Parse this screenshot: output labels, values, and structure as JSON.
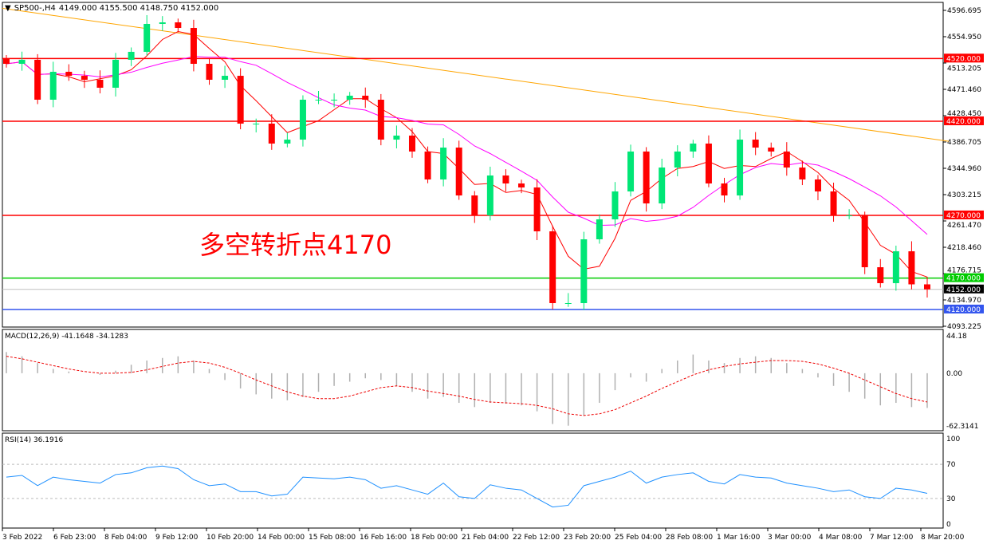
{
  "header": {
    "symbol": "SP500-,H4",
    "ohlc": "4149.000 4155.500 4148.750 4152.000"
  },
  "annotation": "多空转折点4170",
  "colors": {
    "bull": "#00e676",
    "bear": "#ff0000",
    "ma_fast": "#ff0000",
    "ma_mid": "#ff00ff",
    "ma_slow": "#ffa500",
    "rsi": "#1e90ff"
  },
  "price_axis": {
    "ticks": [
      "4596.695",
      "4554.950",
      "4513.205",
      "4471.460",
      "4428.450",
      "4386.705",
      "4344.960",
      "4303.215",
      "4261.470",
      "4218.460",
      "4176.715",
      "4134.970",
      "4093.225"
    ],
    "range": [
      4093.225,
      4596.695
    ]
  },
  "levels": [
    {
      "value": 4520,
      "label": "4520.000",
      "color": "#ff0000"
    },
    {
      "value": 4420,
      "label": "4420.000",
      "color": "#ff0000"
    },
    {
      "value": 4270,
      "label": "4270.000",
      "color": "#ff0000"
    },
    {
      "value": 4170,
      "label": "4170.000",
      "color": "#00cc00"
    },
    {
      "value": 4152,
      "label": "4152.000",
      "color": "#c0c0c0",
      "tag": "#000000"
    },
    {
      "value": 4120,
      "label": "4120.000",
      "color": "#3355ee"
    }
  ],
  "closes": [
    4511.5,
    4517.9,
    4454.3,
    4498.8,
    4492.4,
    4486.1,
    4473.4,
    4517.9,
    4530.6,
    4575.1,
    4577.6,
    4568.7,
    4511.5,
    4486.1,
    4492.4,
    4416.2,
    4416.2,
    4384.4,
    4390.7,
    4454.3,
    4454.3,
    4454.3,
    4460.7,
    4454.3,
    4390.7,
    4397.1,
    4371.7,
    4327.2,
    4378.0,
    4301.7,
    4269.9,
    4333.5,
    4320.8,
    4314.4,
    4244.5,
    4130.1,
    4130.1,
    4231.8,
    4263.6,
    4308.1,
    4371.7,
    4289.0,
    4346.2,
    4371.7,
    4384.4,
    4320.8,
    4301.7,
    4390.7,
    4378.0,
    4371.7,
    4346.2,
    4327.2,
    4308.1,
    4269.9,
    4269.9,
    4187.3,
    4161.9,
    4212.7,
    4160,
    4152
  ],
  "ma_slow": [
    4600,
    4388
  ],
  "macd": {
    "label": "MACD(12,26,9) -41.1648 -34.1283",
    "ticks": [
      "44.18",
      "0.00",
      "-62.3141"
    ],
    "range": [
      -62.3141,
      44.18
    ],
    "hist": [
      25,
      20,
      12,
      5,
      2,
      0,
      -2,
      3,
      10,
      15,
      18,
      20,
      15,
      5,
      -8,
      -18,
      -25,
      -30,
      -32,
      -28,
      -22,
      -15,
      -10,
      -6,
      -8,
      -15,
      -22,
      -30,
      -28,
      -35,
      -40,
      -35,
      -36,
      -38,
      -45,
      -60,
      -62,
      -50,
      -35,
      -20,
      -5,
      -10,
      5,
      15,
      22,
      15,
      12,
      18,
      20,
      18,
      12,
      5,
      -5,
      -15,
      -22,
      -30,
      -38,
      -35,
      -40,
      -41
    ],
    "signal": [
      20,
      17,
      13,
      9,
      5,
      2,
      0,
      0,
      1,
      4,
      8,
      12,
      14,
      12,
      7,
      0,
      -8,
      -15,
      -22,
      -27,
      -30,
      -30,
      -27,
      -22,
      -17,
      -15,
      -17,
      -21,
      -24,
      -27,
      -31,
      -34,
      -35,
      -36,
      -38,
      -42,
      -48,
      -50,
      -48,
      -43,
      -35,
      -27,
      -18,
      -10,
      -2,
      4,
      8,
      11,
      13,
      15,
      15,
      14,
      11,
      6,
      0,
      -8,
      -16,
      -24,
      -30,
      -34
    ]
  },
  "rsi": {
    "label": "RSI(14) 36.1916",
    "ticks": [
      "100",
      "70",
      "30",
      "0"
    ],
    "levels": [
      70,
      30
    ],
    "values": [
      55,
      57,
      45,
      55,
      52,
      50,
      48,
      58,
      60,
      66,
      68,
      65,
      52,
      45,
      47,
      38,
      38,
      33,
      35,
      55,
      54,
      53,
      55,
      52,
      42,
      45,
      40,
      35,
      48,
      32,
      30,
      46,
      42,
      40,
      30,
      20,
      22,
      45,
      50,
      55,
      62,
      48,
      55,
      58,
      60,
      50,
      47,
      58,
      55,
      54,
      48,
      45,
      42,
      38,
      40,
      32,
      30,
      42,
      40,
      36
    ]
  },
  "time_axis": [
    "3 Feb 2022",
    "6 Feb 23:00",
    "8 Feb 04:00",
    "9 Feb 12:00",
    "10 Feb 20:00",
    "14 Feb 00:00",
    "15 Feb 08:00",
    "16 Feb 16:00",
    "18 Feb 00:00",
    "21 Feb 04:00",
    "22 Feb 12:00",
    "23 Feb 20:00",
    "25 Feb 04:00",
    "28 Feb 08:00",
    "1 Mar 16:00",
    "3 Mar 00:00",
    "4 Mar 08:00",
    "7 Mar 12:00",
    "8 Mar 20:00"
  ]
}
